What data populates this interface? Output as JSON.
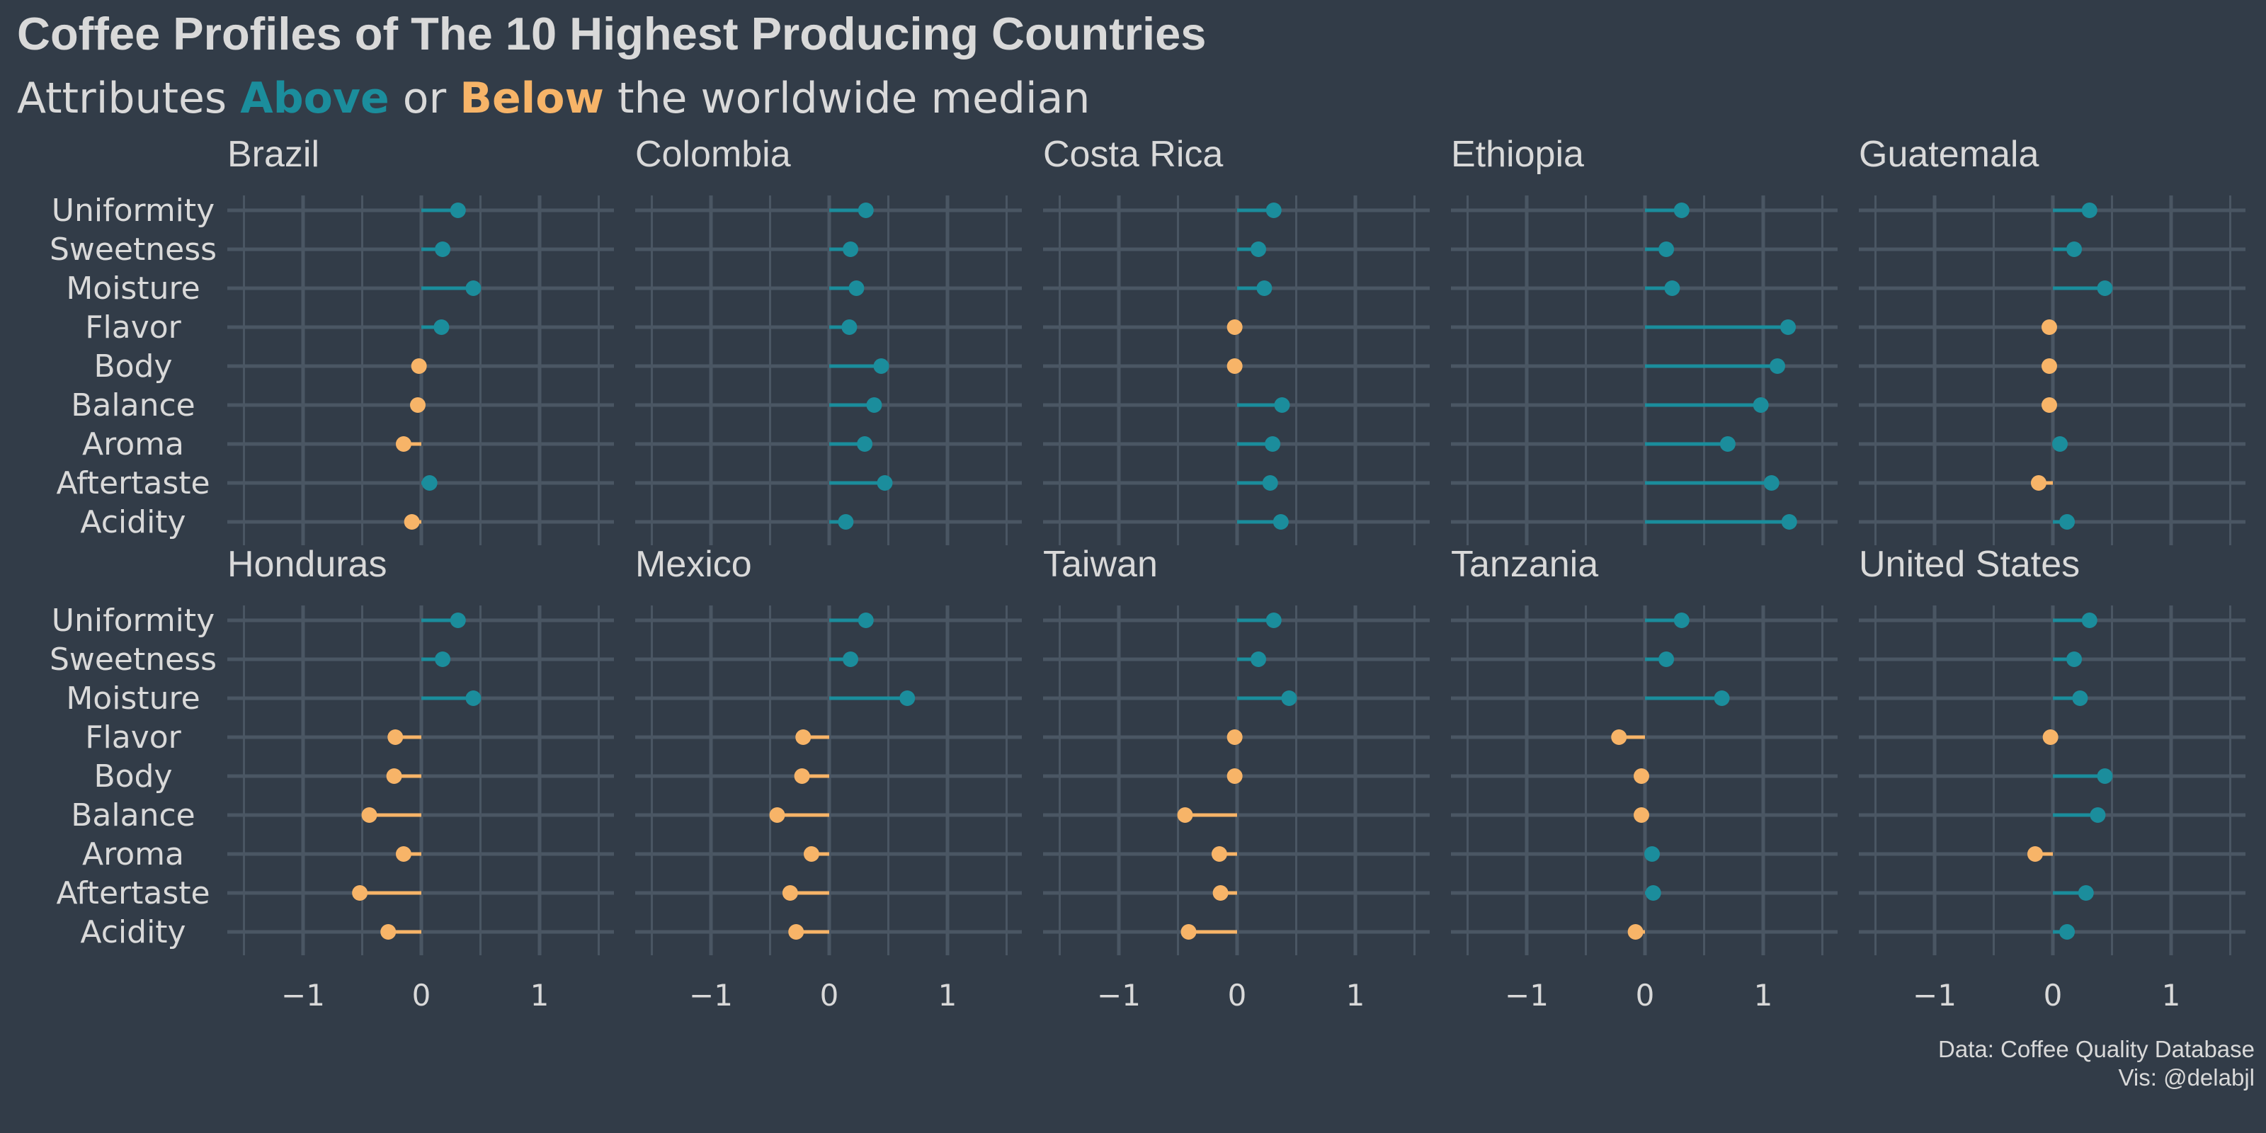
{
  "title": "Coffee Profiles of The 10 Highest Producing Countries",
  "subtitle": {
    "prefix": "Attributes",
    "above": "Above",
    "middle": "or",
    "below": "Below",
    "suffix": "the worldwide median"
  },
  "caption": {
    "line1": "Data: Coffee Quality Database",
    "line2": "Vis: @delabjl"
  },
  "colors": {
    "background": "#323c48",
    "grid": "#4a5663",
    "above": "#1b8d9c",
    "below": "#f7b468",
    "text": "#d9d9d9"
  },
  "chart_data": {
    "type": "lollipop",
    "facet_by": "country",
    "categories": [
      "Uniformity",
      "Sweetness",
      "Moisture",
      "Flavor",
      "Body",
      "Balance",
      "Aroma",
      "Aftertaste",
      "Acidity"
    ],
    "x_ticks": [
      -1,
      0,
      1
    ],
    "x_tick_labels": [
      "−1",
      "0",
      "1"
    ],
    "xlim": [
      -1.6,
      1.6
    ],
    "grid": true,
    "legend": "none",
    "countries": [
      {
        "name": "Brazil",
        "values": [
          0.31,
          0.18,
          0.44,
          0.17,
          -0.02,
          -0.03,
          -0.15,
          0.07,
          -0.08
        ]
      },
      {
        "name": "Colombia",
        "values": [
          0.31,
          0.18,
          0.23,
          0.17,
          0.44,
          0.38,
          0.3,
          0.47,
          0.14
        ]
      },
      {
        "name": "Costa Rica",
        "values": [
          0.31,
          0.18,
          0.23,
          -0.02,
          -0.02,
          0.38,
          0.3,
          0.28,
          0.37
        ]
      },
      {
        "name": "Ethiopia",
        "values": [
          0.31,
          0.18,
          0.23,
          1.21,
          1.12,
          0.98,
          0.7,
          1.07,
          1.22
        ]
      },
      {
        "name": "Guatemala",
        "values": [
          0.31,
          0.18,
          0.44,
          -0.03,
          -0.03,
          -0.03,
          0.06,
          -0.12,
          0.12
        ]
      },
      {
        "name": "Honduras",
        "values": [
          0.31,
          0.18,
          0.44,
          -0.22,
          -0.23,
          -0.44,
          -0.15,
          -0.52,
          -0.28
        ]
      },
      {
        "name": "Mexico",
        "values": [
          0.31,
          0.18,
          0.66,
          -0.22,
          -0.23,
          -0.44,
          -0.15,
          -0.33,
          -0.28
        ]
      },
      {
        "name": "Taiwan",
        "values": [
          0.31,
          0.18,
          0.44,
          -0.02,
          -0.02,
          -0.44,
          -0.15,
          -0.14,
          -0.41
        ]
      },
      {
        "name": "Tanzania",
        "values": [
          0.31,
          0.18,
          0.65,
          -0.22,
          -0.03,
          -0.03,
          0.06,
          0.07,
          -0.08
        ]
      },
      {
        "name": "United States",
        "values": [
          0.31,
          0.18,
          0.23,
          -0.02,
          0.44,
          0.38,
          -0.15,
          0.28,
          0.12
        ]
      }
    ]
  }
}
